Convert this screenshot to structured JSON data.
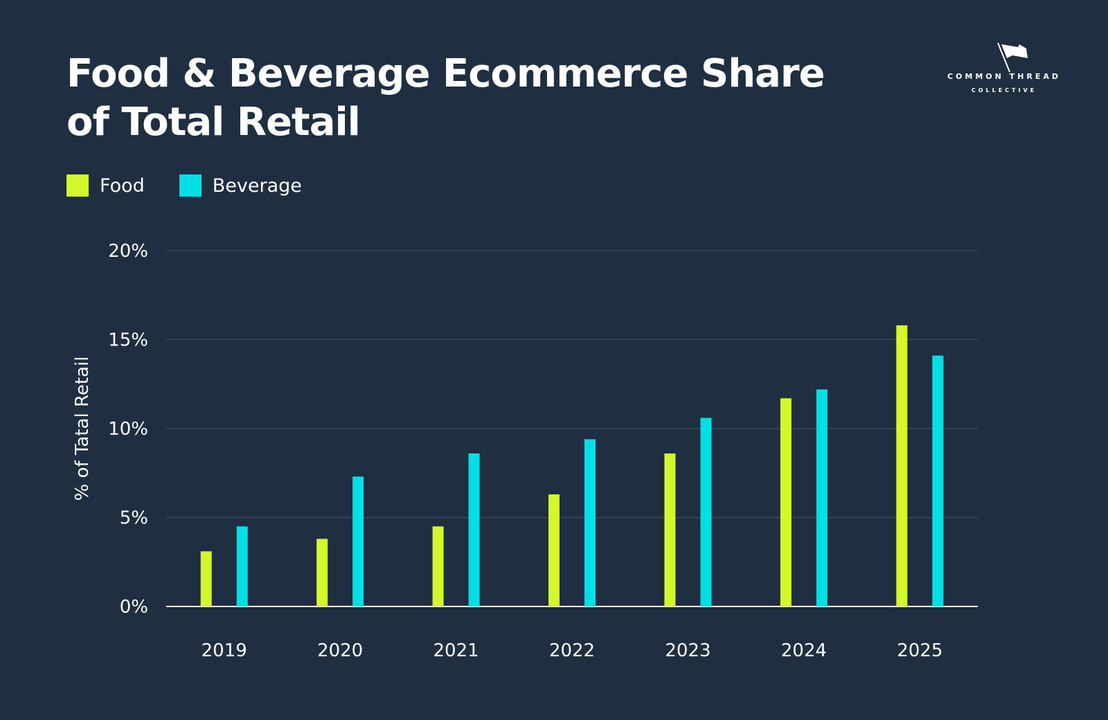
{
  "title": "Food & Beverage Ecommerce Share of Total Retail",
  "logo": {
    "line1": "COMMON THREAD",
    "line2": "COLLECTIVE",
    "icon": "flag-icon"
  },
  "colors": {
    "background": "#1f2f41",
    "food": "#d4f72c",
    "beverage": "#00e0e4",
    "grid": "#3a4b5d",
    "axis": "#ffffff",
    "text": "#ffffff"
  },
  "chart_data": {
    "type": "bar",
    "title": "Food & Beverage Ecommerce Share of Total Retail",
    "xlabel": "",
    "ylabel": "% of Tatal Retail",
    "categories": [
      "2019",
      "2020",
      "2021",
      "2022",
      "2023",
      "2024",
      "2025"
    ],
    "series": [
      {
        "name": "Food",
        "color": "#d4f72c",
        "values": [
          3.1,
          3.8,
          4.5,
          6.3,
          8.6,
          11.7,
          15.8
        ]
      },
      {
        "name": "Beverage",
        "color": "#00e0e4",
        "values": [
          4.5,
          7.3,
          8.6,
          9.4,
          10.6,
          12.2,
          14.1
        ]
      }
    ],
    "ylim": [
      0,
      20
    ],
    "yticks": [
      0,
      5,
      10,
      15,
      20
    ],
    "ytick_labels": [
      "0%",
      "5%",
      "10%",
      "15%",
      "20%"
    ],
    "grid": true,
    "legend_position": "top-left"
  }
}
